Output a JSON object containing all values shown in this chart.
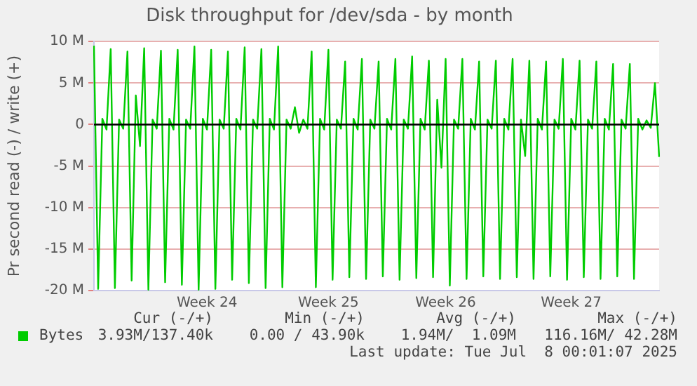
{
  "chart_data": {
    "type": "line",
    "title": "Disk throughput for /dev/sda - by month",
    "ylabel": "Pr second read (-) / write (+)",
    "categories": [
      null,
      null,
      null,
      null,
      null,
      null,
      null,
      null,
      null,
      null,
      null,
      null,
      null,
      null,
      null,
      null,
      null,
      null,
      null,
      null,
      null,
      null,
      null,
      null,
      null,
      null,
      null,
      "Week 24",
      null,
      null,
      null,
      null,
      null,
      null,
      null,
      null,
      null,
      null,
      null,
      null,
      null,
      null,
      null,
      null,
      null,
      null,
      null,
      null,
      null,
      null,
      null,
      null,
      null,
      null,
      null,
      null,
      "Week 25",
      null,
      null,
      null,
      null,
      null,
      null,
      null,
      null,
      null,
      null,
      null,
      null,
      null,
      null,
      null,
      null,
      null,
      null,
      null,
      null,
      null,
      null,
      null,
      null,
      null,
      null,
      null,
      "Week 26",
      null,
      null,
      null,
      null,
      null,
      null,
      null,
      null,
      null,
      null,
      null,
      null,
      null,
      null,
      null,
      null,
      null,
      null,
      null,
      null,
      null,
      null,
      null,
      null,
      null,
      null,
      null,
      null,
      null,
      "Week 27",
      null,
      null,
      null,
      null,
      null,
      null,
      null,
      null,
      null,
      null,
      null,
      null,
      null,
      null,
      null,
      null,
      null,
      null,
      null,
      null,
      null
    ],
    "ylim": [
      -20,
      10
    ],
    "yticks": [
      {
        "value": -20,
        "label": "-20 M"
      },
      {
        "value": -15,
        "label": "-15 M"
      },
      {
        "value": -10,
        "label": "-10 M"
      },
      {
        "value": -5,
        "label": "-5 M"
      },
      {
        "value": 0,
        "label": "0"
      },
      {
        "value": 5,
        "label": "5 M"
      },
      {
        "value": 10,
        "label": "10 M"
      }
    ],
    "grid": "y",
    "legend": "bottom left",
    "marker": "none",
    "line_style": "solid",
    "ref_lines": [
      {
        "axis": "y",
        "value": 0,
        "color": "#000000"
      }
    ],
    "series": [
      {
        "name": "Bytes",
        "color": "#00cc00",
        "values": [
          9.5,
          -19.8,
          0.7,
          -0.6,
          9.1,
          -19.7,
          0.6,
          -0.5,
          8.8,
          -18.8,
          3.5,
          -2.6,
          9.2,
          -19.9,
          0.6,
          -0.5,
          8.9,
          -19.0,
          0.7,
          -0.6,
          9.0,
          -19.3,
          0.6,
          -0.5,
          9.4,
          -19.9,
          0.7,
          -0.6,
          9.0,
          -19.8,
          0.6,
          -0.5,
          8.8,
          -18.7,
          0.7,
          -0.6,
          9.3,
          -19.1,
          0.6,
          -0.5,
          9.1,
          -19.7,
          0.7,
          -0.6,
          9.4,
          -19.6,
          0.6,
          -0.5,
          2.1,
          -1.0,
          0.6,
          -0.5,
          8.8,
          -19.6,
          0.7,
          -0.6,
          9.0,
          -18.7,
          0.6,
          -0.5,
          7.6,
          -18.4,
          0.7,
          -0.6,
          7.9,
          -18.6,
          0.6,
          -0.5,
          7.6,
          -18.3,
          0.7,
          -0.6,
          7.9,
          -18.7,
          0.6,
          -0.5,
          8.2,
          -18.5,
          0.7,
          -0.6,
          7.7,
          -18.4,
          3.0,
          -5.2,
          7.9,
          -19.4,
          0.6,
          -0.5,
          7.9,
          -18.6,
          0.7,
          -0.6,
          7.6,
          -18.3,
          0.6,
          -0.5,
          7.7,
          -18.6,
          0.7,
          -0.6,
          7.9,
          -18.4,
          0.6,
          -3.8,
          7.7,
          -18.6,
          0.7,
          -0.6,
          7.6,
          -18.3,
          0.6,
          -0.5,
          7.9,
          -18.7,
          0.7,
          -0.6,
          7.7,
          -18.4,
          0.6,
          -0.5,
          7.6,
          -18.6,
          0.7,
          -0.6,
          7.3,
          -18.3,
          0.6,
          -0.5,
          7.3,
          -18.6,
          0.7,
          -0.6,
          0.5,
          -0.4,
          5.0,
          -3.9
        ]
      }
    ],
    "annotations": [
      "Cur (-/+)",
      "Min (-/+)",
      "Avg (-/+)",
      "Max (-/+)",
      "3.93M/137.40k",
      "0.00 / 43.90k",
      "1.94M/  1.09M",
      "116.16M/ 42.28M",
      "Last update: Tue Jul  8 00:01:07 2025"
    ]
  }
}
